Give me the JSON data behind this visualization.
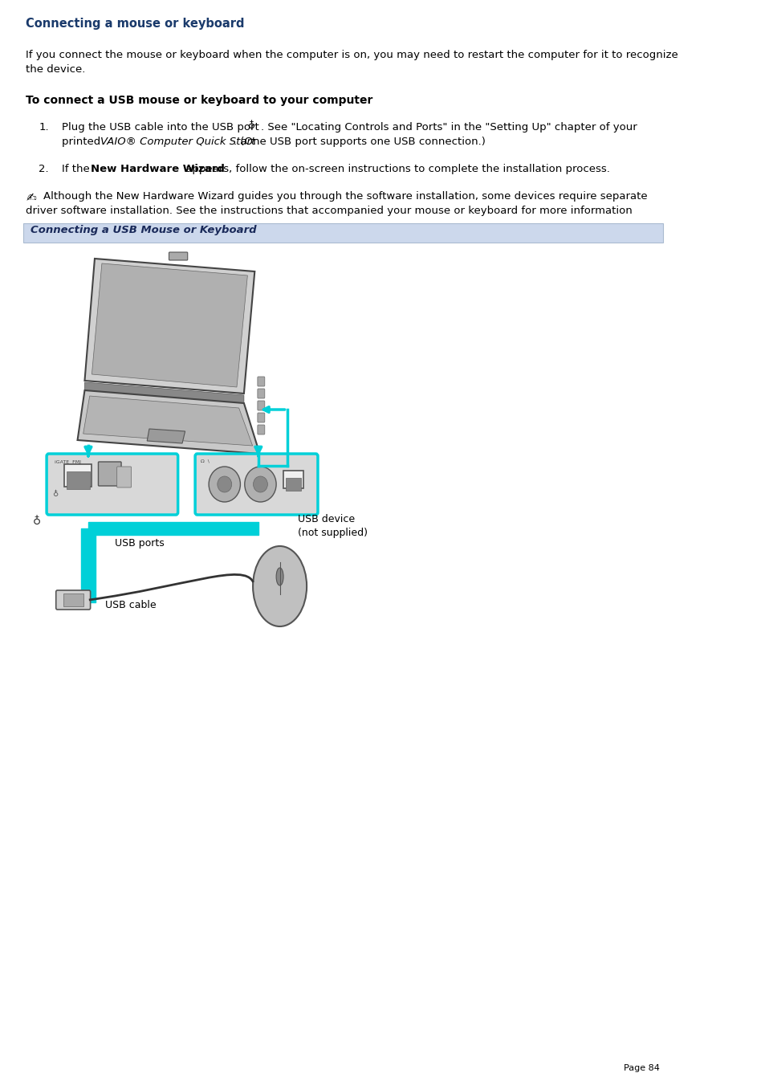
{
  "title": "Connecting a mouse or keyboard",
  "title_color": "#1a3a6b",
  "bg_color": "#ffffff",
  "lm": 0.038,
  "rm": 0.965,
  "body_text_1a": "If you connect the mouse or keyboard when the computer is on, you may need to restart the computer for it to recognize",
  "body_text_1b": "the device.",
  "section_heading": "To connect a USB mouse or keyboard to your computer",
  "step2_text_pre": "2.   If the ",
  "step2_text_bold": "New Hardware Wizard",
  "step2_text_post": " appears, follow the on-screen instructions to complete the installation process.",
  "note_line1": "Although the New Hardware Wizard guides you through the software installation, some devices require separate",
  "note_line2": "driver software installation. See the instructions that accompanied your mouse or keyboard for more information",
  "diagram_label": "Connecting a USB Mouse or Keyboard",
  "label_usb_ports": "USB ports",
  "label_usb_device_1": "USB device",
  "label_usb_device_2": "(not supplied)",
  "label_usb_cable": "USB cable",
  "page_number": "Page 84",
  "cyan_color": "#00d0d8",
  "text_color": "#000000",
  "label_bg": "#ccd8ec",
  "label_border": "#aabbd0",
  "gray_dark": "#555555",
  "gray_mid": "#999999",
  "gray_light": "#cccccc",
  "gray_laptop": "#b8b8b8",
  "title_fontsize": 10.5,
  "body_fontsize": 9.5,
  "diagram_label_fontsize": 9.5
}
